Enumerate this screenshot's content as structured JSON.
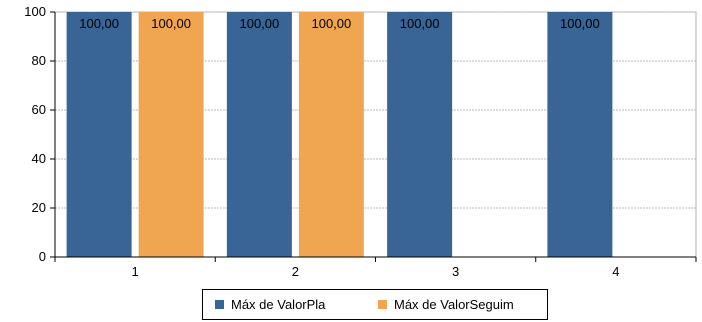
{
  "chart_data": {
    "type": "bar",
    "categories": [
      "1",
      "2",
      "3",
      "4"
    ],
    "series": [
      {
        "name": "Máx de ValorPla",
        "color": "#396496",
        "values": [
          100,
          100,
          100,
          100
        ],
        "labels": [
          "100,00",
          "100,00",
          "100,00",
          "100,00"
        ]
      },
      {
        "name": "Máx de ValorSeguim",
        "color": "#f0a651",
        "values": [
          100,
          100,
          null,
          null
        ],
        "labels": [
          "100,00",
          "100,00",
          "",
          ""
        ]
      }
    ],
    "ylim": [
      0,
      100
    ],
    "yticks": [
      "0",
      "20",
      "40",
      "60",
      "80",
      "100"
    ],
    "grid": true,
    "legend_position": "bottom"
  }
}
